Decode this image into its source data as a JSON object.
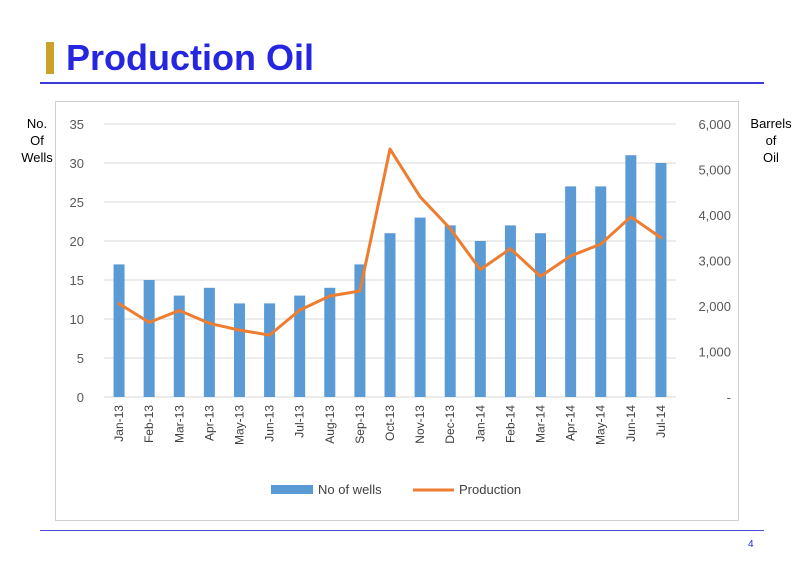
{
  "slide": {
    "title": "Production Oil",
    "page_number": "4",
    "left_axis_label": [
      "No.",
      "Of",
      "Wells"
    ],
    "right_axis_label": [
      "Barrels",
      "of",
      "Oil"
    ]
  },
  "colors": {
    "title": "#2626e0",
    "title_bar": "#c9a227",
    "bars": "#5b9bd5",
    "line": "#ed7d31"
  },
  "chart_data": {
    "type": "bar+line",
    "categories": [
      "Jan-13",
      "Feb-13",
      "Mar-13",
      "Apr-13",
      "May-13",
      "Jun-13",
      "Jul-13",
      "Aug-13",
      "Sep-13",
      "Oct-13",
      "Nov-13",
      "Dec-13",
      "Jan-14",
      "Feb-14",
      "Mar-14",
      "Apr-14",
      "May-14",
      "Jun-14",
      "Jul-14"
    ],
    "series": [
      {
        "name": "No of wells",
        "type": "bar",
        "axis": "left",
        "values": [
          17,
          15,
          13,
          14,
          12,
          12,
          13,
          14,
          17,
          21,
          23,
          22,
          20,
          22,
          21,
          27,
          27,
          31,
          30
        ]
      },
      {
        "name": "Production",
        "type": "line",
        "axis": "right",
        "values": [
          2050,
          1640,
          1900,
          1620,
          1470,
          1360,
          1910,
          2220,
          2330,
          5450,
          4400,
          3700,
          2800,
          3260,
          2650,
          3100,
          3360,
          3960,
          3500
        ]
      }
    ],
    "left_axis": {
      "min": 0,
      "max": 35,
      "ticks": [
        "0",
        "5",
        "10",
        "15",
        "20",
        "25",
        "30",
        "35"
      ]
    },
    "right_axis": {
      "min": 0,
      "max": 6000,
      "ticks": [
        "-",
        "1,000",
        "2,000",
        "3,000",
        "4,000",
        "5,000",
        "6,000"
      ]
    },
    "legend": {
      "position": "bottom",
      "entries": [
        "No of wells",
        "Production"
      ]
    },
    "grid": true
  }
}
